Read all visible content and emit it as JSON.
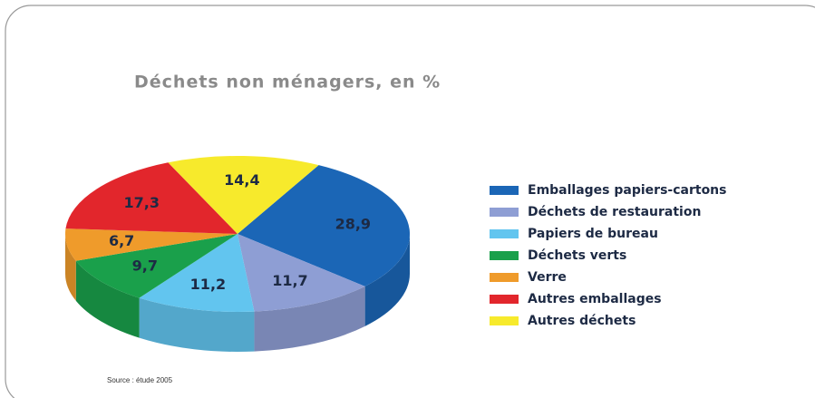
{
  "chart_data": {
    "type": "pie3d",
    "title": "Déchets non ménagers, en %",
    "categories": [
      "Emballages papiers-cartons",
      "Déchets de restauration",
      "Papiers de bureau",
      "Déchets verts",
      "Verre",
      "Autres emballages",
      "Autres déchets"
    ],
    "values": [
      28.9,
      11.7,
      11.2,
      9.7,
      6.7,
      17.3,
      14.4
    ],
    "value_labels": [
      "28,9",
      "11,7",
      "11,2",
      "9,7",
      "6,7",
      "17,3",
      "14,4"
    ],
    "colors": [
      "#1b66b6",
      "#8e9ed4",
      "#62c5ef",
      "#1aa04b",
      "#ef9b2b",
      "#e2262c",
      "#f7ea2c"
    ],
    "legend": "right",
    "source": "Source : étude 2005"
  }
}
